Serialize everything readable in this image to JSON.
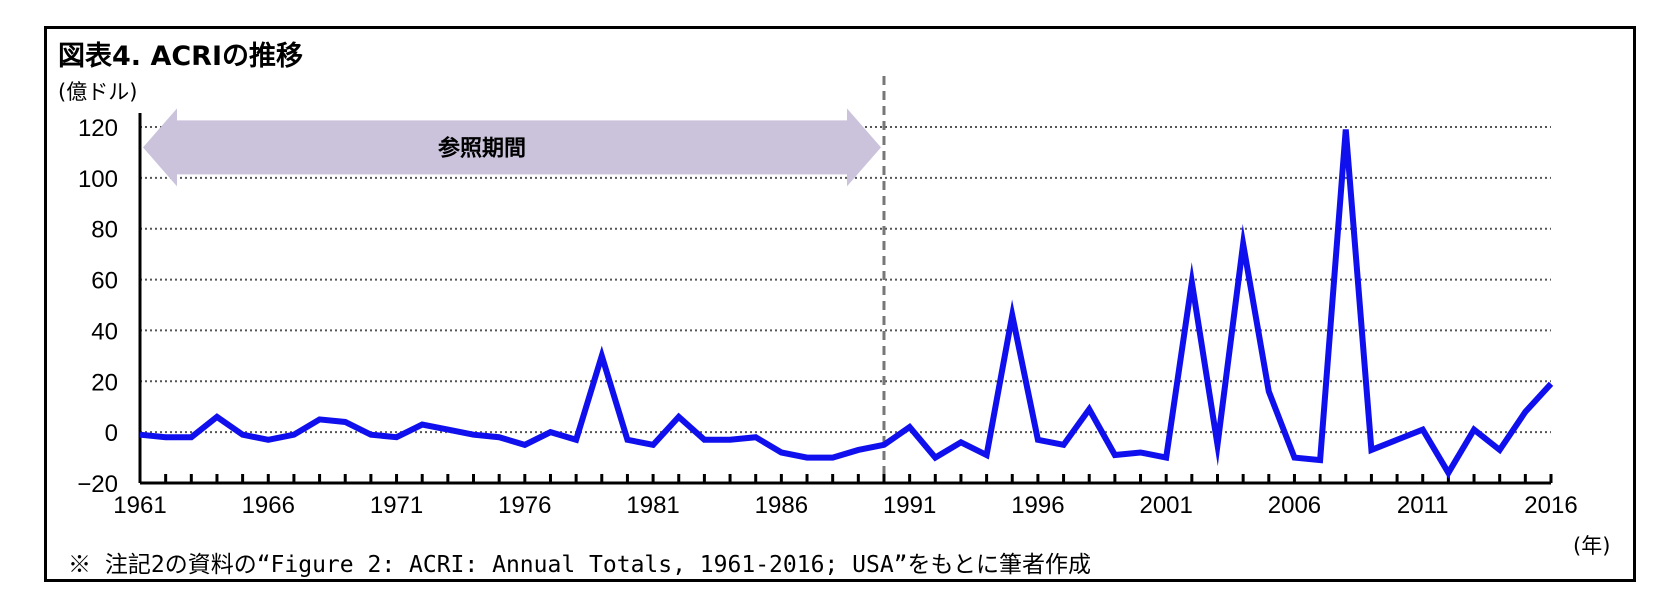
{
  "title": "図表4. ACRIの推移",
  "y_unit": "(億ドル)",
  "x_unit": "(年)",
  "note": "※ 注記2の資料の“Figure 2: ACRI: Annual Totals, 1961-2016; USA”をもとに筆者作成",
  "colors": {
    "line": "#1010ee",
    "band": "#cbc3dc",
    "grid": "#555555",
    "divider": "#777777"
  },
  "chart_data": {
    "type": "line",
    "title": "図表4. ACRIの推移",
    "ylabel": "(億ドル)",
    "xlabel": "(年)",
    "xlim": [
      1961,
      2016
    ],
    "ylim": [
      -20,
      120
    ],
    "y_ticks": [
      -20,
      0,
      20,
      40,
      60,
      80,
      100,
      120
    ],
    "x_ticks": [
      1961,
      1966,
      1971,
      1976,
      1981,
      1986,
      1991,
      1996,
      2001,
      2006,
      2011,
      2016
    ],
    "grid": "horizontal dotted",
    "annotations": [
      {
        "type": "range-arrow",
        "label": "参照期間",
        "from": 1961,
        "to": 1990
      },
      {
        "type": "vertical-dashed-line",
        "x": 1990
      }
    ],
    "series": [
      {
        "x": [
          1961,
          1962,
          1963,
          1964,
          1965,
          1966,
          1967,
          1968,
          1969,
          1970,
          1971,
          1972,
          1973,
          1974,
          1975,
          1976,
          1977,
          1978,
          1979,
          1980,
          1981,
          1982,
          1983,
          1984,
          1985,
          1986,
          1987,
          1988,
          1989,
          1990,
          1991,
          1992,
          1993,
          1994,
          1995,
          1996,
          1997,
          1998,
          1999,
          2000,
          2001,
          2002,
          2003,
          2004,
          2005,
          2006,
          2007,
          2008,
          2009,
          2010,
          2011,
          2012,
          2013,
          2014,
          2015,
          2016
        ],
        "values": [
          -1,
          -2,
          -2,
          6,
          -1,
          -3,
          -1,
          5,
          4,
          -1,
          -2,
          3,
          1,
          -1,
          -2,
          -5,
          0,
          -3,
          30,
          -3,
          -5,
          6,
          -3,
          -3,
          -2,
          -8,
          -10,
          -10,
          -7,
          -5,
          2,
          -10,
          -4,
          -9,
          46,
          -3,
          -5,
          9,
          -9,
          -8,
          -10,
          59,
          -5,
          74,
          16,
          -10,
          -11,
          119,
          -7,
          -3,
          1,
          -16,
          1,
          -7,
          8,
          19
        ]
      }
    ]
  }
}
